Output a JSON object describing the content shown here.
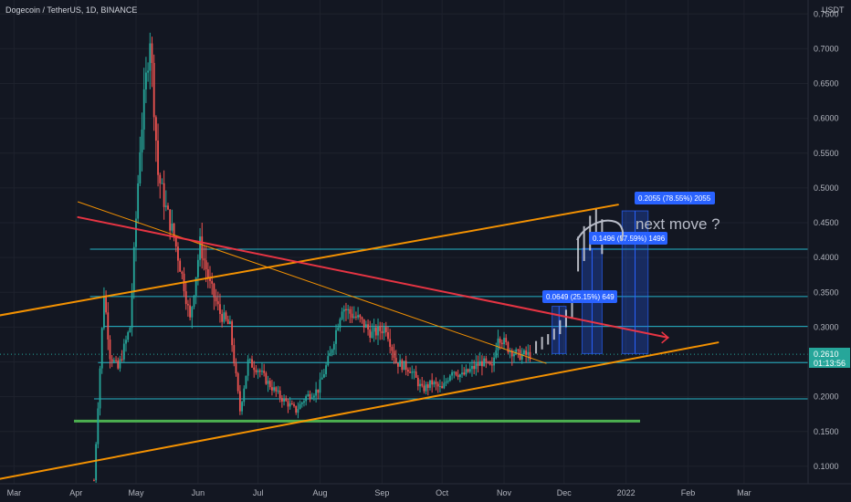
{
  "header": {
    "symbol_title": "Dogecoin / TetherUS, 1D, BINANCE",
    "currency": "USDT"
  },
  "price_label": {
    "value": "0.2610",
    "countdown": "01:13:56"
  },
  "annotation": {
    "text": "next move ?"
  },
  "measurements": [
    {
      "label": "0.2055 (78.55%) 2055"
    },
    {
      "label": "0.1496 (57.59%) 1496"
    },
    {
      "label": "0.0649 (25.15%) 649"
    }
  ],
  "colors": {
    "background": "#131722",
    "bull": "#26a69a",
    "bear": "#ef5350",
    "orange_line": "#ff9800",
    "red_line": "#f23645",
    "green_line": "#4caf50",
    "cyan_line": "#26c6da",
    "measure_box": "#2962ff"
  },
  "chart_data": {
    "type": "candlestick",
    "y_axis": {
      "ticks": [
        "0.7500",
        "0.7000",
        "0.6500",
        "0.6000",
        "0.5500",
        "0.5000",
        "0.4500",
        "0.4000",
        "0.3500",
        "0.3000",
        "0.2500",
        "0.2000",
        "0.1500",
        "0.1000"
      ],
      "range": [
        0.075,
        0.77
      ]
    },
    "x_axis": {
      "ticks": [
        "Mar",
        "Apr",
        "May",
        "Jun",
        "Jul",
        "Aug",
        "Sep",
        "Oct",
        "Nov",
        "Dec",
        "2022",
        "Feb",
        "Mar"
      ]
    },
    "horizontal_levels": [
      0.412,
      0.344,
      0.301,
      0.249,
      0.197
    ],
    "support_level": 0.165,
    "price_path": [
      [
        "2021-04-10",
        0.08
      ],
      [
        "2021-04-15",
        0.35
      ],
      [
        "2021-04-18",
        0.26
      ],
      [
        "2021-04-22",
        0.24
      ],
      [
        "2021-04-28",
        0.3
      ],
      [
        "2021-05-03",
        0.56
      ],
      [
        "2021-05-08",
        0.72
      ],
      [
        "2021-05-12",
        0.52
      ],
      [
        "2021-05-16",
        0.47
      ],
      [
        "2021-05-20",
        0.43
      ],
      [
        "2021-05-25",
        0.36
      ],
      [
        "2021-05-28",
        0.31
      ],
      [
        "2021-06-02",
        0.42
      ],
      [
        "2021-06-07",
        0.36
      ],
      [
        "2021-06-12",
        0.32
      ],
      [
        "2021-06-17",
        0.3
      ],
      [
        "2021-06-22",
        0.18
      ],
      [
        "2021-06-26",
        0.25
      ],
      [
        "2021-07-01",
        0.24
      ],
      [
        "2021-07-06",
        0.22
      ],
      [
        "2021-07-12",
        0.2
      ],
      [
        "2021-07-20",
        0.18
      ],
      [
        "2021-07-25",
        0.2
      ],
      [
        "2021-07-31",
        0.21
      ],
      [
        "2021-08-06",
        0.26
      ],
      [
        "2021-08-12",
        0.33
      ],
      [
        "2021-08-16",
        0.32
      ],
      [
        "2021-08-21",
        0.31
      ],
      [
        "2021-08-27",
        0.29
      ],
      [
        "2021-09-03",
        0.3
      ],
      [
        "2021-09-08",
        0.25
      ],
      [
        "2021-09-15",
        0.24
      ],
      [
        "2021-09-21",
        0.21
      ],
      [
        "2021-09-26",
        0.22
      ],
      [
        "2021-10-01",
        0.21
      ],
      [
        "2021-10-06",
        0.24
      ],
      [
        "2021-10-11",
        0.23
      ],
      [
        "2021-10-16",
        0.24
      ],
      [
        "2021-10-21",
        0.25
      ],
      [
        "2021-10-26",
        0.24
      ],
      [
        "2021-10-29",
        0.29
      ],
      [
        "2021-11-03",
        0.27
      ],
      [
        "2021-11-08",
        0.26
      ],
      [
        "2021-11-14",
        0.26
      ]
    ],
    "projection_bars": [
      [
        "2021-11-17",
        0.262,
        0.28
      ],
      [
        "2021-11-20",
        0.268,
        0.286
      ],
      [
        "2021-11-23",
        0.275,
        0.29
      ],
      [
        "2021-11-26",
        0.282,
        0.298
      ],
      [
        "2021-11-29",
        0.29,
        0.31
      ],
      [
        "2021-12-02",
        0.3,
        0.325
      ],
      [
        "2021-12-05",
        0.312,
        0.34
      ],
      [
        "2021-12-08",
        0.38,
        0.43
      ],
      [
        "2021-12-11",
        0.395,
        0.445
      ],
      [
        "2021-12-14",
        0.41,
        0.46
      ],
      [
        "2021-12-17",
        0.42,
        0.47
      ],
      [
        "2021-12-20",
        0.405,
        0.455
      ]
    ]
  }
}
